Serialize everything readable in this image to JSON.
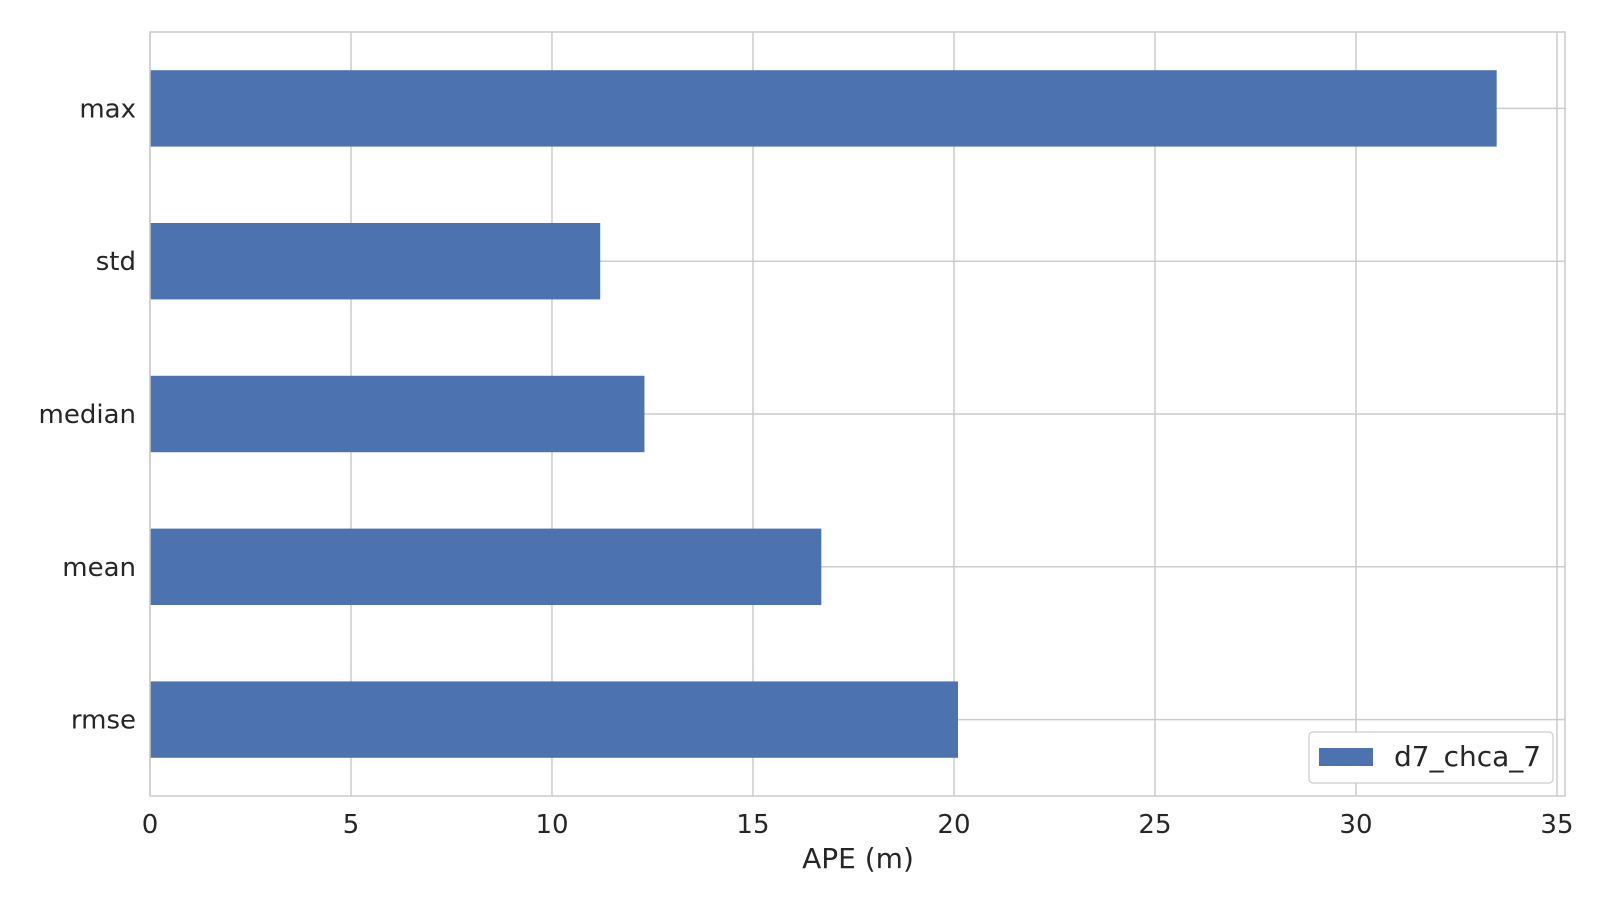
{
  "chart_data": {
    "type": "bar",
    "orientation": "horizontal",
    "categories": [
      "max",
      "std",
      "median",
      "mean",
      "rmse"
    ],
    "series": [
      {
        "name": "d7_chca_7",
        "values": [
          33.5,
          11.2,
          12.3,
          16.7,
          20.1
        ],
        "color": "#4c72b0"
      }
    ],
    "xlabel": "APE (m)",
    "ylabel": "",
    "xlim": [
      0,
      35.2
    ],
    "xticks": [
      0,
      5,
      10,
      15,
      20,
      25,
      30,
      35
    ],
    "grid": true,
    "legend_position": "bottom-right",
    "colors": {
      "bar": "#4c72b0",
      "grid": "#cccccc",
      "text": "#262626",
      "background": "#ffffff"
    }
  }
}
